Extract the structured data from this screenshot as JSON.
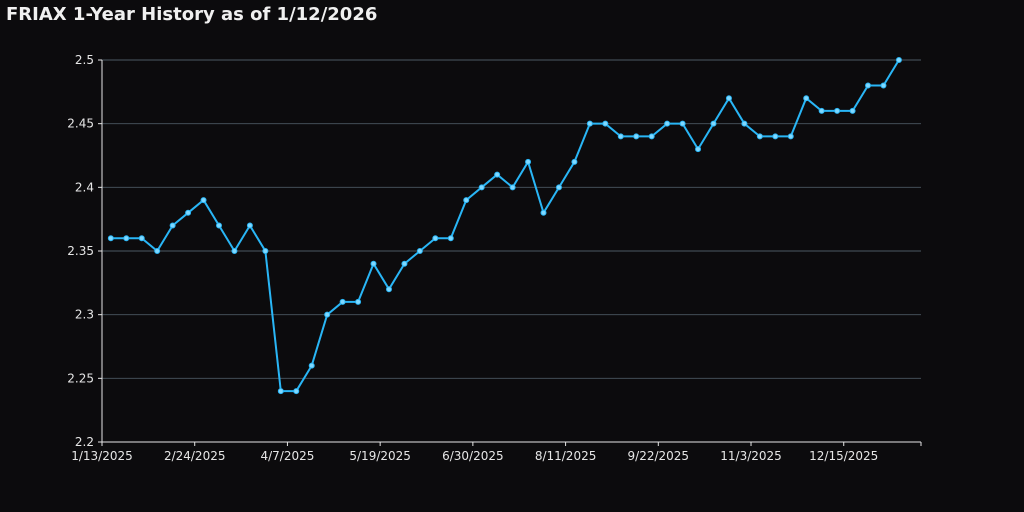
{
  "chart_data": {
    "type": "line",
    "title": "FRIAX 1-Year History as of 1/12/2026",
    "x": [
      "1/17/2025",
      "1/24/2025",
      "1/31/2025",
      "2/7/2025",
      "2/14/2025",
      "2/21/2025",
      "2/28/2025",
      "3/7/2025",
      "3/14/2025",
      "3/21/2025",
      "3/28/2025",
      "4/4/2025",
      "4/11/2025",
      "4/18/2025",
      "4/25/2025",
      "5/2/2025",
      "5/9/2025",
      "5/16/2025",
      "5/23/2025",
      "5/30/2025",
      "6/6/2025",
      "6/13/2025",
      "6/20/2025",
      "6/27/2025",
      "7/4/2025",
      "7/11/2025",
      "7/18/2025",
      "7/25/2025",
      "8/1/2025",
      "8/8/2025",
      "8/15/2025",
      "8/22/2025",
      "8/29/2025",
      "9/5/2025",
      "9/12/2025",
      "9/19/2025",
      "9/26/2025",
      "10/3/2025",
      "10/10/2025",
      "10/17/2025",
      "10/24/2025",
      "10/31/2025",
      "11/7/2025",
      "11/14/2025",
      "11/21/2025",
      "11/28/2025",
      "12/5/2025",
      "12/12/2025",
      "12/19/2025",
      "12/26/2025",
      "1/2/2026",
      "1/9/2026"
    ],
    "series": [
      {
        "color": "#29b6f6",
        "values": [
          2.36,
          2.36,
          2.36,
          2.35,
          2.37,
          2.38,
          2.39,
          2.37,
          2.35,
          2.37,
          2.35,
          2.24,
          2.24,
          2.26,
          2.3,
          2.31,
          2.31,
          2.34,
          2.32,
          2.34,
          2.35,
          2.36,
          2.36,
          2.39,
          2.4,
          2.41,
          2.4,
          2.42,
          2.38,
          2.4,
          2.42,
          2.45,
          2.45,
          2.44,
          2.44,
          2.44,
          2.45,
          2.45,
          2.43,
          2.45,
          2.47,
          2.45,
          2.44,
          2.44,
          2.44,
          2.47,
          2.46,
          2.46,
          2.46,
          2.48,
          2.48,
          2.5
        ]
      }
    ],
    "xlim": [
      "1/13/2025",
      "1/19/2026"
    ],
    "xticks": [
      "1/13/2025",
      "2/24/2025",
      "4/7/2025",
      "5/19/2025",
      "6/30/2025",
      "8/11/2025",
      "9/22/2025",
      "11/3/2025",
      "12/15/2025"
    ],
    "ylim": [
      2.2,
      2.5
    ],
    "yticks": [
      2.2,
      2.25,
      2.3,
      2.35,
      2.4,
      2.45,
      2.5
    ],
    "grid": true
  }
}
